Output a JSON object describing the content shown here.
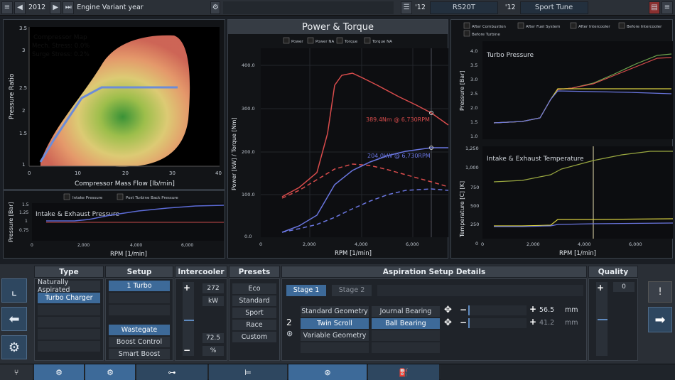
{
  "topbar": {
    "year": "2012",
    "year_label": "Engine Variant year",
    "family_year": "'12",
    "engine_name": "RS20T",
    "variant_year": "'12",
    "variant_name": "Sport Tune"
  },
  "compressor_map": {
    "title": "Compressor Map",
    "mech_stress": "Mech. Stress: 0.0%",
    "surge_stress": "Surge Stress: 0.2%",
    "xlabel": "Compressor Mass Flow [lb/min]",
    "ylabel": "Pressure Ratio",
    "xticks": [
      "0",
      "10",
      "20",
      "30",
      "40"
    ],
    "yticks": [
      "3.5",
      "3",
      "2.5",
      "2",
      "1.5",
      "1"
    ]
  },
  "intake_pressure": {
    "legend": [
      "Intake Pressure",
      "Post Turbine Back Pressure"
    ],
    "title": "Intake & Exhaust Pressure",
    "ylabel": "Pressure [Bar]",
    "xlabel": "RPM [1/min]",
    "yticks": [
      "1.5",
      "1.25",
      "1",
      "0.75"
    ],
    "xticks": [
      "0",
      "2,000",
      "4,000",
      "6,000"
    ]
  },
  "power_torque": {
    "title": "Power & Torque",
    "legend": [
      "Power",
      "Power NA",
      "Torque",
      "Torque NA"
    ],
    "torque_annotation": "389.4Nm @ 6,730RPM",
    "power_annotation": "204.0kW @ 6,730RPM",
    "ylabel": "Power [kW] / Torque [Nm]",
    "xlabel": "RPM [1/min]",
    "yticks": [
      "400.0",
      "300.0",
      "200.0",
      "100.0",
      "0.0"
    ],
    "xticks": [
      "0",
      "2,000",
      "4,000",
      "6,000"
    ]
  },
  "right_legend": [
    "After Combustion",
    "After Fuel System",
    "After Intercooler",
    "Before Intercooler",
    "Before Turbine"
  ],
  "turbo_pressure": {
    "title": "Turbo Pressure",
    "ylabel": "Pressure [Bar]",
    "yticks": [
      "4.0",
      "3.5",
      "3.0",
      "2.5",
      "2.0",
      "1.5",
      "1.0"
    ]
  },
  "temperature": {
    "title": "Intake & Exhaust Temperature",
    "ylabel": "Temperature [C] [K]",
    "xlabel": "RPM [1/min]",
    "yticks": [
      "1,250",
      "1,000",
      "750",
      "500",
      "250",
      "0"
    ],
    "xticks": [
      "0",
      "2,000",
      "4,000",
      "6,000"
    ]
  },
  "type": {
    "header": "Type",
    "items": [
      "Naturally Aspirated",
      "Turbo Charger"
    ]
  },
  "setup": {
    "header": "Setup",
    "items": [
      "1 Turbo"
    ],
    "lower_items": [
      "Wastegate",
      "Boost Control",
      "Smart Boost"
    ]
  },
  "intercooler": {
    "header": "Intercooler",
    "value1": "272",
    "unit1": "kW",
    "value2": "72.5",
    "unit2": "%"
  },
  "presets": {
    "header": "Presets",
    "items": [
      "Eco",
      "Standard",
      "Sport",
      "Race",
      "Custom"
    ]
  },
  "aspiration": {
    "header": "Aspiration Setup Details",
    "stage1": "Stage 1",
    "stage2": "Stage 2",
    "count": "2",
    "geometry": [
      "Standard Geometry",
      "Twin Scroll",
      "Variable Geometry"
    ],
    "bearing": [
      "Journal Bearing",
      "Ball Bearing"
    ],
    "value": "56.5",
    "unit": "mm",
    "value2": "41.2",
    "unit2": "mm"
  },
  "quality": {
    "header": "Quality",
    "value": "0"
  }
}
